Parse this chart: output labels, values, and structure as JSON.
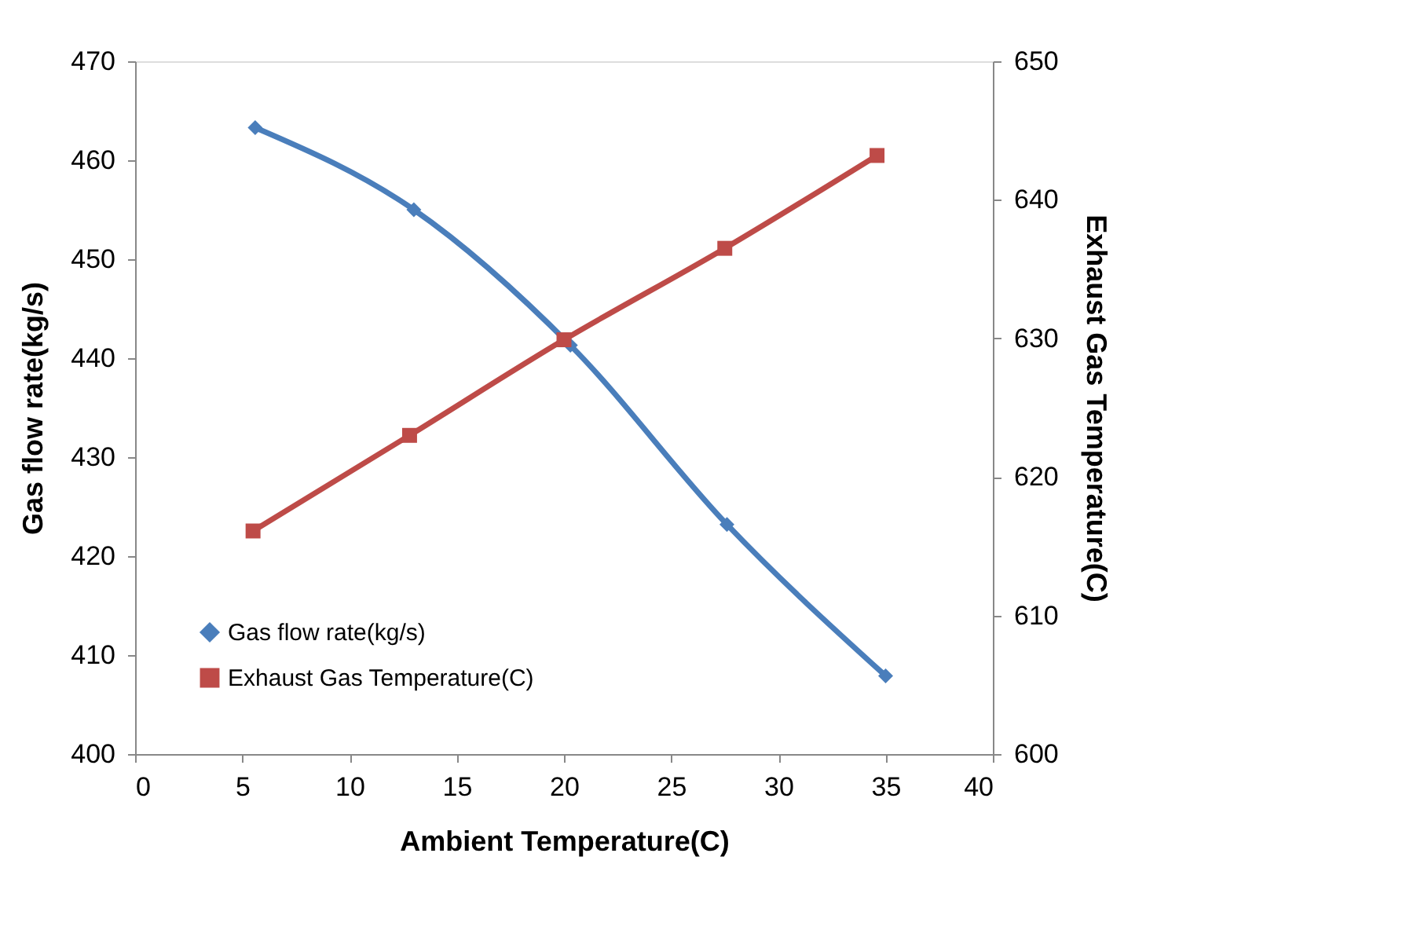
{
  "chart_data": {
    "type": "line",
    "xlabel": "Ambient Temperature(C)",
    "ylabel": "Gas flow rate(kg/s)",
    "y2label": "Exhaust Gas Temperature(C)",
    "xlim": [
      0,
      40
    ],
    "xticks": [
      0,
      5,
      10,
      15,
      20,
      25,
      30,
      35,
      40
    ],
    "ylim": [
      400,
      470
    ],
    "yticks": [
      400,
      410,
      420,
      430,
      440,
      450,
      460,
      470
    ],
    "y2lim": [
      600,
      650
    ],
    "y2ticks": [
      600,
      610,
      620,
      630,
      640,
      650
    ],
    "legend": "bottom left",
    "line_style": "solid",
    "series": [
      {
        "name": "Gas flow rate(kg/s)",
        "color": "#4a7ebb",
        "marker": "diamond",
        "x": [
          5.6,
          13.0,
          20.3,
          27.6,
          35.0
        ],
        "values": [
          463.3,
          455.0,
          441.3,
          423.2,
          407.9
        ]
      },
      {
        "name": "Exhaust Gas Temperature(C)",
        "color": "#be4b48",
        "marker": "square",
        "axis": "y2",
        "x": [
          5.5,
          12.8,
          20.0,
          27.5,
          34.6
        ],
        "values": [
          616.1,
          623.0,
          629.9,
          636.5,
          643.2
        ]
      }
    ]
  }
}
